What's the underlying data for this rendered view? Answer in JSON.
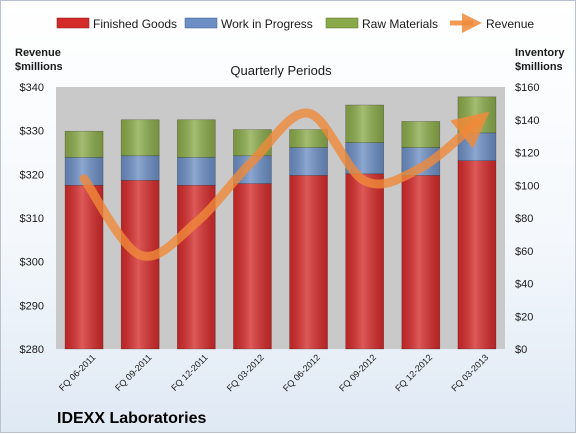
{
  "chart_data": {
    "type": "bar",
    "title": "Quarterly Periods",
    "company": "IDEXX Laboratories",
    "categories": [
      "FQ 06-2011",
      "FQ 09-2011",
      "FQ 12-2011",
      "FQ 03-2012",
      "FQ 06-2012",
      "FQ 09-2012",
      "FQ 12-2012",
      "FQ 03-2013"
    ],
    "stacked_series": [
      {
        "name": "Finished Goods",
        "color": "#d42a2a",
        "values": [
          100,
          103,
          100,
          101,
          106,
          107,
          106,
          115
        ]
      },
      {
        "name": "Work in Progress",
        "color": "#6c8ec4",
        "values": [
          17,
          15,
          17,
          17,
          17,
          19,
          17,
          17
        ]
      },
      {
        "name": "Raw Materials",
        "color": "#8aaa4a",
        "values": [
          16,
          22,
          23,
          16,
          11,
          23,
          16,
          22
        ]
      }
    ],
    "line_series": {
      "name": "Revenue",
      "color": "#f08a3a",
      "values": [
        319,
        301.5,
        309,
        323,
        334,
        318.5,
        321.5,
        332
      ]
    },
    "left_axis": {
      "title_line1": "Revenue",
      "title_line2": "$millions",
      "min": 280,
      "max": 340,
      "step": 10,
      "tick_labels": [
        "$280",
        "$290",
        "$300",
        "$310",
        "$320",
        "$330",
        "$340"
      ]
    },
    "right_axis": {
      "title_line1": "Inventory",
      "title_line2": "$millions",
      "min": 0,
      "max": 160,
      "step": 20,
      "tick_labels": [
        "$0",
        "$20",
        "$40",
        "$60",
        "$80",
        "$100",
        "$120",
        "$140",
        "$160"
      ]
    },
    "legend_position": "top",
    "grid": false,
    "colors": {
      "plot_background": "#c9c9c9",
      "frame_background": "#f4f8fc"
    }
  }
}
